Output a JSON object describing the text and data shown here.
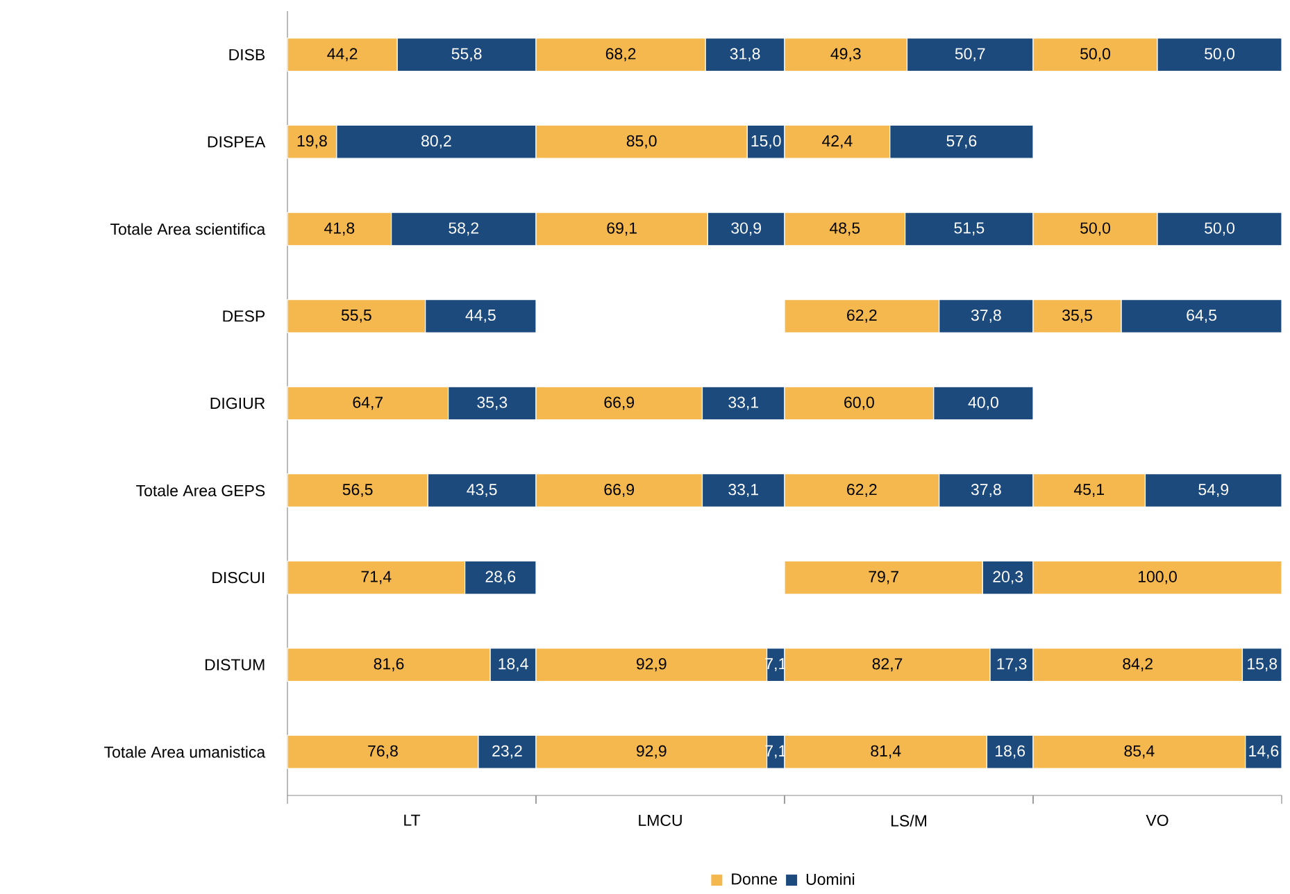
{
  "chart_data": [
    {
      "type": "bar",
      "orientation": "horizontal",
      "stacked": true,
      "xlabel": "LT",
      "categories": [
        "DISB",
        "DISPEA",
        "Totale Area scientifica",
        "DESP",
        "DIGIUR",
        "Totale Area GEPS",
        "DISCUI",
        "DISTUM",
        "Totale Area umanistica"
      ],
      "xlim": [
        0,
        100
      ],
      "tick_labels": "y",
      "legend": "bottom",
      "series": [
        {
          "name": "Donne",
          "color": "#f5b84e",
          "values": [
            44.2,
            19.8,
            41.8,
            55.5,
            64.7,
            56.5,
            71.4,
            81.6,
            76.8
          ],
          "value_labels": [
            "44,2",
            "19,8",
            "41,8",
            "55,5",
            "64,7",
            "56,5",
            "71,4",
            "81,6",
            "76,8"
          ]
        },
        {
          "name": "Uomini",
          "color": "#1d4a7c",
          "values": [
            55.8,
            80.2,
            58.2,
            44.5,
            35.3,
            43.5,
            28.6,
            18.4,
            23.2
          ],
          "value_labels": [
            "55,8",
            "80,2",
            "58,2",
            "44,5",
            "35,3",
            "43,5",
            "28,6",
            "18,4",
            "23,2"
          ]
        }
      ]
    },
    {
      "type": "bar",
      "orientation": "horizontal",
      "stacked": true,
      "xlabel": "LMCU",
      "categories": [
        null,
        null,
        null,
        null,
        null,
        null,
        null,
        null,
        null
      ],
      "xlim": [
        0,
        100
      ],
      "tick_labels": false,
      "series": [
        {
          "color": "#f5b84e",
          "values": [
            68.2,
            85.0,
            69.1,
            null,
            66.9,
            66.9,
            null,
            92.9,
            92.9
          ],
          "value_labels": [
            "68,2",
            "85,0",
            "69,1",
            null,
            "66,9",
            "66,9",
            null,
            "92,9",
            "92,9"
          ]
        },
        {
          "color": "#1d4a7c",
          "values": [
            31.8,
            15.0,
            30.9,
            null,
            33.1,
            33.1,
            null,
            7.1,
            7.1
          ],
          "value_labels": [
            "31,8",
            "15,0",
            "30,9",
            null,
            "33,1",
            "33,1",
            null,
            "7,1",
            "7,1"
          ]
        }
      ]
    },
    {
      "type": "bar",
      "orientation": "horizontal",
      "stacked": true,
      "xlabel": "LS/M",
      "categories": [
        null,
        null,
        null,
        null,
        null,
        null,
        null,
        null,
        null
      ],
      "xlim": [
        0,
        100
      ],
      "tick_labels": false,
      "series": [
        {
          "color": "#f5b84e",
          "values": [
            49.3,
            42.4,
            48.5,
            62.2,
            60.0,
            62.2,
            79.7,
            82.7,
            81.4
          ],
          "value_labels": [
            "49,3",
            "42,4",
            "48,5",
            "62,2",
            "60,0",
            "62,2",
            "79,7",
            "82,7",
            "81,4"
          ]
        },
        {
          "color": "#1d4a7c",
          "values": [
            50.7,
            57.6,
            51.5,
            37.8,
            40.0,
            37.8,
            20.3,
            17.3,
            18.6
          ],
          "value_labels": [
            "50,7",
            "57,6",
            "51,5",
            "37,8",
            "40,0",
            "37,8",
            "20,3",
            "17,3",
            "18,6"
          ]
        }
      ]
    },
    {
      "type": "bar",
      "orientation": "horizontal",
      "stacked": true,
      "xlabel": "VO",
      "categories": [
        null,
        null,
        null,
        null,
        null,
        null,
        null,
        null,
        null
      ],
      "xlim": [
        0,
        100
      ],
      "tick_labels": false,
      "series": [
        {
          "color": "#f5b84e",
          "values": [
            50.0,
            null,
            50.0,
            35.5,
            null,
            45.1,
            100.0,
            84.2,
            85.4
          ],
          "value_labels": [
            "50,0",
            null,
            "50,0",
            "35,5",
            null,
            "45,1",
            "100,0",
            "84,2",
            "85,4"
          ]
        },
        {
          "color": "#1d4a7c",
          "values": [
            50.0,
            null,
            50.0,
            64.5,
            null,
            54.9,
            null,
            15.8,
            14.6
          ],
          "value_labels": [
            "50,0",
            null,
            "50,0",
            "64,5",
            null,
            "54,9",
            null,
            "15,8",
            "14,6"
          ]
        }
      ]
    }
  ]
}
